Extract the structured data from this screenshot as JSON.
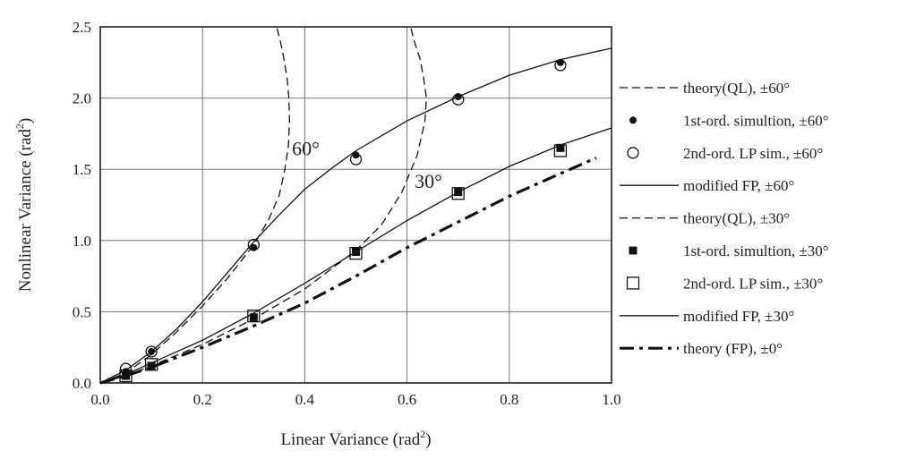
{
  "chart_data": {
    "type": "line",
    "title": "",
    "xlabel": "Linear Variance (rad",
    "xlabel_sup": "2",
    "xlabel_suffix": ")",
    "ylabel": "Nonlinear Variance (rad",
    "ylabel_sup": "2",
    "ylabel_suffix": ")",
    "xlim": [
      0.0,
      1.0
    ],
    "ylim": [
      0.0,
      2.5
    ],
    "x_ticks": [
      0.0,
      0.2,
      0.4,
      0.6,
      0.8,
      1.0
    ],
    "x_tick_labels": [
      "0.0",
      "0.2",
      "0.4",
      "0.6",
      "0.8",
      "1.0"
    ],
    "y_ticks": [
      0.0,
      0.5,
      1.0,
      1.5,
      2.0,
      2.5
    ],
    "y_tick_labels": [
      "0.0",
      "0.5",
      "1.0",
      "1.5",
      "2.0",
      "2.5"
    ],
    "grid": true,
    "legend_position": "right",
    "annotations": [
      {
        "text": "60°",
        "x": 0.375,
        "y": 1.6
      },
      {
        "text": "30°",
        "x": 0.615,
        "y": 1.37
      }
    ],
    "series": [
      {
        "name": "theory(QL), ±60°",
        "style": "dashed",
        "points": [
          [
            0.0,
            0.0
          ],
          [
            0.05,
            0.07
          ],
          [
            0.1,
            0.2
          ],
          [
            0.15,
            0.36
          ],
          [
            0.2,
            0.54
          ],
          [
            0.25,
            0.74
          ],
          [
            0.3,
            0.97
          ],
          [
            0.33,
            1.15
          ],
          [
            0.35,
            1.32
          ],
          [
            0.36,
            1.48
          ],
          [
            0.368,
            1.66
          ],
          [
            0.37,
            1.84
          ],
          [
            0.369,
            2.0
          ],
          [
            0.365,
            2.15
          ],
          [
            0.358,
            2.3
          ],
          [
            0.352,
            2.4
          ],
          [
            0.345,
            2.5
          ]
        ]
      },
      {
        "name": "1st-ord. simultion, ±60°",
        "style": "marker-filled-circle",
        "points": [
          [
            0.05,
            0.08
          ],
          [
            0.1,
            0.22
          ],
          [
            0.3,
            0.95
          ],
          [
            0.5,
            1.6
          ],
          [
            0.7,
            2.01
          ],
          [
            0.9,
            2.25
          ]
        ]
      },
      {
        "name": "2nd-ord. LP sim., ±60°",
        "style": "marker-open-circle",
        "points": [
          [
            0.05,
            0.1
          ],
          [
            0.1,
            0.22
          ],
          [
            0.3,
            0.97
          ],
          [
            0.5,
            1.57
          ],
          [
            0.7,
            1.99
          ],
          [
            0.9,
            2.23
          ]
        ]
      },
      {
        "name": "modified FP, ±60°",
        "style": "solid",
        "points": [
          [
            0.0,
            0.0
          ],
          [
            0.05,
            0.09
          ],
          [
            0.1,
            0.22
          ],
          [
            0.15,
            0.38
          ],
          [
            0.2,
            0.57
          ],
          [
            0.25,
            0.78
          ],
          [
            0.3,
            0.99
          ],
          [
            0.35,
            1.18
          ],
          [
            0.4,
            1.36
          ],
          [
            0.45,
            1.5
          ],
          [
            0.5,
            1.63
          ],
          [
            0.6,
            1.84
          ],
          [
            0.7,
            2.01
          ],
          [
            0.8,
            2.16
          ],
          [
            0.9,
            2.27
          ],
          [
            1.0,
            2.35
          ]
        ]
      },
      {
        "name": "theory(QL), ±30°",
        "style": "dashed",
        "points": [
          [
            0.0,
            0.0
          ],
          [
            0.05,
            0.05
          ],
          [
            0.1,
            0.12
          ],
          [
            0.2,
            0.27
          ],
          [
            0.3,
            0.45
          ],
          [
            0.4,
            0.66
          ],
          [
            0.5,
            0.93
          ],
          [
            0.55,
            1.11
          ],
          [
            0.59,
            1.34
          ],
          [
            0.62,
            1.6
          ],
          [
            0.635,
            1.84
          ],
          [
            0.638,
            2.0
          ],
          [
            0.632,
            2.15
          ],
          [
            0.625,
            2.28
          ],
          [
            0.614,
            2.4
          ],
          [
            0.607,
            2.5
          ]
        ]
      },
      {
        "name": "1st-ord. simultion, ±30°",
        "style": "marker-filled-square",
        "points": [
          [
            0.05,
            0.05
          ],
          [
            0.1,
            0.12
          ],
          [
            0.3,
            0.46
          ],
          [
            0.5,
            0.92
          ],
          [
            0.7,
            1.34
          ],
          [
            0.9,
            1.65
          ]
        ]
      },
      {
        "name": "2nd-ord. LP sim., ±30°",
        "style": "marker-open-square",
        "points": [
          [
            0.05,
            0.05
          ],
          [
            0.1,
            0.13
          ],
          [
            0.3,
            0.47
          ],
          [
            0.5,
            0.91
          ],
          [
            0.7,
            1.33
          ],
          [
            0.9,
            1.63
          ]
        ]
      },
      {
        "name": "modified FP, ±30°",
        "style": "solid",
        "points": [
          [
            0.0,
            0.0
          ],
          [
            0.05,
            0.06
          ],
          [
            0.1,
            0.14
          ],
          [
            0.2,
            0.3
          ],
          [
            0.3,
            0.49
          ],
          [
            0.4,
            0.7
          ],
          [
            0.5,
            0.92
          ],
          [
            0.6,
            1.14
          ],
          [
            0.7,
            1.34
          ],
          [
            0.8,
            1.52
          ],
          [
            0.9,
            1.67
          ],
          [
            1.0,
            1.79
          ]
        ]
      },
      {
        "name": "theory (FP), ±0°",
        "style": "thick-dashdot",
        "points": [
          [
            0.0,
            0.0
          ],
          [
            0.05,
            0.05
          ],
          [
            0.1,
            0.11
          ],
          [
            0.2,
            0.25
          ],
          [
            0.3,
            0.4
          ],
          [
            0.4,
            0.56
          ],
          [
            0.5,
            0.75
          ],
          [
            0.6,
            0.95
          ],
          [
            0.7,
            1.13
          ],
          [
            0.8,
            1.31
          ],
          [
            0.9,
            1.47
          ],
          [
            0.97,
            1.58
          ]
        ]
      }
    ]
  }
}
